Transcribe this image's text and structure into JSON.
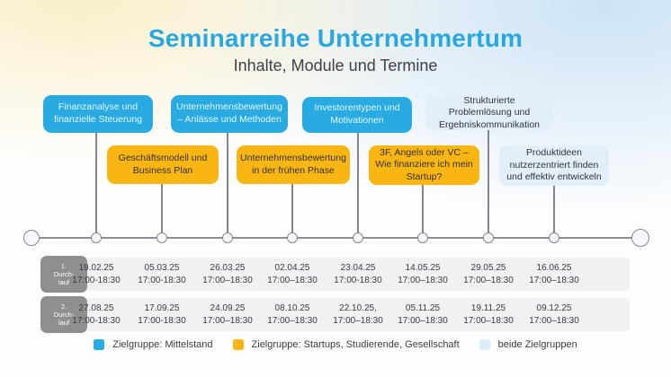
{
  "header": {
    "title": "Seminarreihe Unternehmertum",
    "subtitle": "Inhalte, Module und Termine"
  },
  "modules": [
    {
      "label": "Finanzanalyse und finanzielle Steuerung",
      "audience": "Mittelstand"
    },
    {
      "label": "Geschäftsmodell und Business Plan",
      "audience": "Startups, Studierende, Gesellschaft"
    },
    {
      "label": "Unternehmensbewertung – Anlässe und Methoden",
      "audience": "Mittelstand"
    },
    {
      "label": "Unternehmensbewertung in der frühen Phase",
      "audience": "Startups, Studierende, Gesellschaft"
    },
    {
      "label": "Investorentypen und Motivationen",
      "audience": "Mittelstand"
    },
    {
      "label": "3F, Angels oder VC – Wie finanziere ich mein Startup?",
      "audience": "Startups, Studierende, Gesellschaft"
    },
    {
      "label": "Strukturierte Problemlösung und Ergebniskommunikation",
      "audience": "beide Zielgruppen"
    },
    {
      "label": "Produktideen nutzerzentriert finden und effektiv entwickeln",
      "audience": "beide Zielgruppen"
    }
  ],
  "schedule": {
    "rows": [
      {
        "chip": [
          "1.",
          "Durch-",
          "lauf"
        ],
        "sessions": [
          {
            "date": "19.02.25",
            "time": "17:00-18:30"
          },
          {
            "date": "05.03.25",
            "time": "17:00-18:30"
          },
          {
            "date": "26.03.25",
            "time": "17:00–18:30"
          },
          {
            "date": "02.04.25",
            "time": "17:00–18:30"
          },
          {
            "date": "23.04.25",
            "time": "17:00-18:30"
          },
          {
            "date": "14.05.25",
            "time": "17:00–18:30"
          },
          {
            "date": "29.05.25",
            "time": "17:00–18:30"
          },
          {
            "date": "16.06.25",
            "time": "17:00–18:30"
          }
        ]
      },
      {
        "chip": [
          "2.",
          "Durch-",
          "lauf"
        ],
        "sessions": [
          {
            "date": "27.08.25",
            "time": "17:00-18:30"
          },
          {
            "date": "17.09.25",
            "time": "17:00-18:30"
          },
          {
            "date": "24.09.25",
            "time": "17:00–18:30"
          },
          {
            "date": "08.10.25",
            "time": "17:00–18:30"
          },
          {
            "date": "22.10.25,",
            "time": "17:00–18:30"
          },
          {
            "date": "05.11.25",
            "time": "17:00–18:30"
          },
          {
            "date": "19.11.25",
            "time": "17:00–18:30"
          },
          {
            "date": "09.12.25",
            "time": "17:00–18:30"
          }
        ]
      }
    ]
  },
  "legend": [
    {
      "label": "Zielgruppe: Mittelstand",
      "color": "#29abe2"
    },
    {
      "label": "Zielgruppe: Startups, Studierende, Gesellschaft",
      "color": "#f9b512"
    },
    {
      "label": "beide Zielgruppen",
      "color": "#ddedf8"
    }
  ],
  "colors": {
    "title_blue": "#29a7df",
    "box_blue": "#29abe2",
    "box_yellow": "#f9b512",
    "box_light_blue": "#e2eff9",
    "chip_gray": "#8f8f90",
    "row_background": "#f1f0f2",
    "text_dark": "#3a3a46",
    "line_gray": "#85858f"
  }
}
